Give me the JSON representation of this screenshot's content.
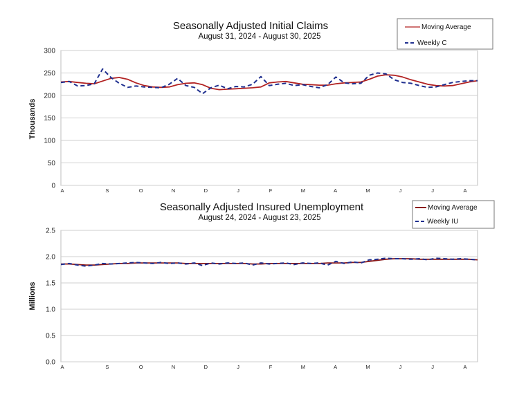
{
  "chart_data": [
    {
      "type": "line",
      "title": "Seasonally Adjusted Initial Claims",
      "subtitle": "August 31, 2024 - August 30, 2025",
      "ylabel": "Thousands",
      "xlabel": "",
      "ylim": [
        0,
        300
      ],
      "yticks": [
        "0",
        "50",
        "100",
        "150",
        "200",
        "250",
        "300"
      ],
      "xticks": [
        "A",
        "S",
        "O",
        "N",
        "D",
        "J",
        "F",
        "M",
        "A",
        "M",
        "J",
        "J",
        "A"
      ],
      "grid": true,
      "legend": "top-right",
      "series": [
        {
          "name": "Moving Average",
          "color": "#b22222",
          "style": "solid",
          "values": [
            230,
            231,
            229,
            227,
            226,
            232,
            238,
            240,
            236,
            228,
            222,
            219,
            218,
            219,
            224,
            227,
            228,
            224,
            216,
            213,
            214,
            215,
            216,
            217,
            219,
            228,
            230,
            231,
            228,
            225,
            224,
            223,
            223,
            226,
            228,
            229,
            230,
            236,
            243,
            246,
            245,
            241,
            235,
            230,
            225,
            222,
            221,
            222,
            226,
            230,
            233
          ]
        },
        {
          "name": "Weekly C",
          "color": "#1f2f8f",
          "style": "dashed",
          "values": [
            229,
            231,
            221,
            222,
            226,
            259,
            240,
            227,
            218,
            221,
            219,
            218,
            217,
            225,
            238,
            222,
            218,
            204,
            217,
            223,
            215,
            220,
            219,
            225,
            242,
            222,
            225,
            227,
            222,
            224,
            220,
            217,
            224,
            241,
            228,
            226,
            227,
            245,
            250,
            248,
            235,
            229,
            227,
            222,
            218,
            219,
            224,
            229,
            231,
            233,
            233
          ]
        }
      ]
    },
    {
      "type": "line",
      "title": "Seasonally Adjusted Insured Unemployment",
      "subtitle": "August 24, 2024 - August 23, 2025",
      "ylabel": "Millions",
      "xlabel": "",
      "ylim": [
        0,
        2.5
      ],
      "yticks": [
        "0.0",
        "0.5",
        "1.0",
        "1.5",
        "2.0",
        "2.5"
      ],
      "xticks": [
        "A",
        "S",
        "O",
        "N",
        "D",
        "J",
        "F",
        "M",
        "A",
        "M",
        "J",
        "J",
        "A"
      ],
      "grid": true,
      "legend": "top-right",
      "series": [
        {
          "name": "Moving Average",
          "color": "#8b1a1a",
          "style": "solid",
          "values": [
            1.86,
            1.86,
            1.85,
            1.84,
            1.84,
            1.85,
            1.86,
            1.87,
            1.87,
            1.88,
            1.88,
            1.88,
            1.88,
            1.88,
            1.88,
            1.87,
            1.87,
            1.87,
            1.87,
            1.87,
            1.87,
            1.87,
            1.87,
            1.86,
            1.86,
            1.87,
            1.87,
            1.87,
            1.87,
            1.87,
            1.87,
            1.87,
            1.88,
            1.88,
            1.88,
            1.89,
            1.89,
            1.91,
            1.93,
            1.95,
            1.96,
            1.96,
            1.96,
            1.95,
            1.95,
            1.95,
            1.95,
            1.95,
            1.95,
            1.95,
            1.94
          ]
        },
        {
          "name": "Weekly IU",
          "color": "#1f2f8f",
          "style": "dashed",
          "values": [
            1.85,
            1.87,
            1.84,
            1.82,
            1.84,
            1.87,
            1.86,
            1.87,
            1.88,
            1.89,
            1.88,
            1.87,
            1.89,
            1.87,
            1.88,
            1.86,
            1.88,
            1.83,
            1.88,
            1.86,
            1.88,
            1.87,
            1.88,
            1.84,
            1.88,
            1.86,
            1.87,
            1.88,
            1.85,
            1.88,
            1.87,
            1.88,
            1.84,
            1.91,
            1.87,
            1.9,
            1.88,
            1.94,
            1.95,
            1.97,
            1.96,
            1.96,
            1.95,
            1.96,
            1.94,
            1.97,
            1.96,
            1.95,
            1.96,
            1.95,
            1.94
          ]
        }
      ]
    }
  ]
}
